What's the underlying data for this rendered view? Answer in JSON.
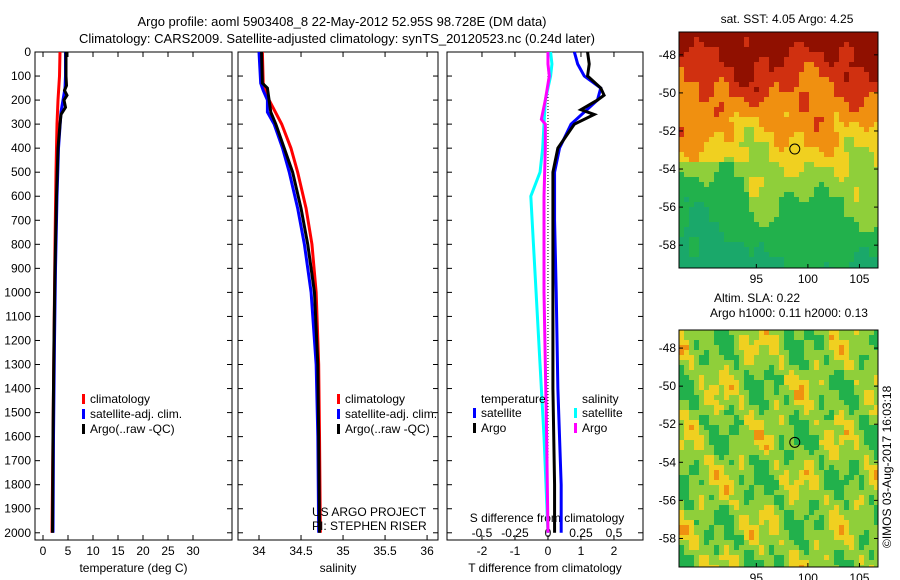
{
  "title_line1": "Argo profile: aoml 5903408_8 22-May-2012 52.95S 98.728E (DM data)",
  "title_line2": "Climatology: CARS2009. Satellite-adjusted climatology: synTS_20120523.nc (0.24d later)",
  "credit": "US ARGO PROJECT",
  "pi": "PI: STEPHEN RISER",
  "imos_stamp": "©IMOS 03-Aug-2017 16:03:18",
  "colors": {
    "climatology": "#ff0000",
    "satellite": "#0000ff",
    "argo": "#000000",
    "s_satellite": "#00ffff",
    "s_argo": "#ff00ff"
  },
  "chart_data": [
    {
      "type": "line",
      "name": "temperature",
      "xlabel": "temperature (deg C)",
      "ylabel": "",
      "xlim": [
        -1.6,
        37.8
      ],
      "ylim": [
        2030,
        0
      ],
      "xticks": [
        0,
        5,
        10,
        15,
        20,
        25,
        30
      ],
      "yticks": [
        0,
        100,
        200,
        300,
        400,
        500,
        600,
        700,
        800,
        900,
        1000,
        1100,
        1200,
        1300,
        1400,
        1500,
        1600,
        1700,
        1800,
        1900,
        2000
      ],
      "legend": [
        "climatology",
        "satellite-adj. clim.",
        "Argo(..raw -QC)"
      ],
      "series": [
        {
          "name": "climatology",
          "color": "#ff0000",
          "depth": [
            0,
            100,
            200,
            300,
            500,
            800,
            1200,
            1600,
            2000
          ],
          "values": [
            3.4,
            3.3,
            3.0,
            2.8,
            2.6,
            2.4,
            2.2,
            2.0,
            1.8
          ]
        },
        {
          "name": "satellite-adj. clim.",
          "color": "#0000ff",
          "depth": [
            0,
            100,
            150,
            250,
            400,
            600,
            900,
            1200,
            1600,
            2000
          ],
          "values": [
            4.5,
            4.5,
            4.4,
            3.6,
            3.1,
            2.8,
            2.5,
            2.3,
            2.1,
            2.0
          ]
        },
        {
          "name": "Argo(..raw -QC)",
          "color": "#000000",
          "depth": [
            0,
            100,
            140,
            160,
            180,
            200,
            230,
            260,
            300,
            400,
            600,
            900,
            1200,
            1600,
            2000
          ],
          "values": [
            4.6,
            4.6,
            4.7,
            4.3,
            4.8,
            4.2,
            4.5,
            3.6,
            3.4,
            3.0,
            2.7,
            2.4,
            2.2,
            2.0,
            1.9
          ]
        }
      ]
    },
    {
      "type": "line",
      "name": "salinity",
      "xlabel": "salinity",
      "ylabel": "",
      "xlim": [
        33.75,
        36.13
      ],
      "ylim": [
        2030,
        0
      ],
      "xticks": [
        34,
        34.5,
        35,
        35.5,
        36
      ],
      "legend": [
        "climatology",
        "satellite-adj. clim.",
        "Argo(..raw -QC)"
      ],
      "series": [
        {
          "name": "climatology",
          "color": "#ff0000",
          "depth": [
            0,
            130,
            200,
            300,
            400,
            500,
            650,
            800,
            1000,
            1300,
            1600,
            2000
          ],
          "values": [
            34.04,
            34.05,
            34.12,
            34.27,
            34.38,
            34.46,
            34.56,
            34.63,
            34.68,
            34.71,
            34.72,
            34.73
          ]
        },
        {
          "name": "satellite-adj. clim.",
          "color": "#0000ff",
          "depth": [
            0,
            130,
            160,
            200,
            250,
            300,
            400,
            500,
            650,
            800,
            1000,
            1300,
            1600,
            2000
          ],
          "values": [
            34.0,
            34.02,
            34.05,
            34.1,
            34.1,
            34.18,
            34.28,
            34.36,
            34.46,
            34.54,
            34.62,
            34.68,
            34.7,
            34.71
          ]
        },
        {
          "name": "Argo(..raw -QC)",
          "color": "#000000",
          "depth": [
            0,
            130,
            150,
            200,
            250,
            300,
            400,
            500,
            650,
            800,
            1000,
            1300,
            1600,
            2000
          ],
          "values": [
            34.03,
            34.04,
            34.1,
            34.12,
            34.14,
            34.2,
            34.3,
            34.4,
            34.5,
            34.58,
            34.66,
            34.7,
            34.71,
            34.72
          ]
        }
      ]
    },
    {
      "type": "line",
      "name": "difference",
      "xlabel": "T difference from climatology",
      "top_xlabel": "S difference from climatology",
      "xlim": [
        -3.06,
        2.88
      ],
      "s_xlim": [
        -0.765,
        0.72
      ],
      "ylim": [
        2030,
        0
      ],
      "xticks": [
        -2,
        -1,
        0,
        1,
        2
      ],
      "s_xticks": [
        -0.5,
        -0.25,
        0,
        0.25,
        0.5
      ],
      "legend": {
        "temperature": "temperature",
        "salinity": "salinity",
        "t_items": [
          "satellite",
          "Argo"
        ],
        "s_items": [
          "satellite",
          "Argo"
        ]
      },
      "series": [
        {
          "name": "T satellite",
          "color": "#0000ff",
          "axis": "T",
          "depth": [
            0,
            50,
            100,
            150,
            200,
            300,
            400,
            500,
            700,
            1000,
            1400,
            1800,
            2000
          ],
          "values": [
            0.8,
            0.9,
            1.1,
            1.6,
            1.5,
            0.7,
            0.35,
            0.2,
            0.2,
            0.25,
            0.3,
            0.4,
            0.4
          ]
        },
        {
          "name": "T Argo",
          "color": "#000000",
          "axis": "T",
          "depth": [
            0,
            50,
            100,
            150,
            180,
            200,
            240,
            260,
            300,
            400,
            500,
            700,
            1000,
            1400,
            1800,
            2000
          ],
          "values": [
            1.2,
            1.25,
            1.2,
            1.6,
            1.7,
            1.5,
            1.0,
            1.4,
            0.8,
            0.3,
            0.15,
            0.15,
            0.15,
            0.15,
            0.2,
            0.2
          ]
        },
        {
          "name": "S satellite",
          "color": "#00ffff",
          "axis": "S",
          "depth": [
            0,
            50,
            100,
            200,
            300,
            400,
            500,
            600,
            800,
            1000,
            1300,
            1600,
            2000
          ],
          "values": [
            0.02,
            0.03,
            0.02,
            -0.02,
            -0.03,
            -0.04,
            -0.06,
            -0.13,
            -0.11,
            -0.09,
            -0.06,
            -0.03,
            0.0
          ]
        },
        {
          "name": "S Argo",
          "color": "#ff00ff",
          "axis": "S",
          "depth": [
            0,
            50,
            100,
            200,
            280,
            300,
            400,
            600,
            800,
            1000,
            1300,
            1600,
            2000
          ],
          "values": [
            0.0,
            0.0,
            0.01,
            -0.02,
            -0.05,
            -0.02,
            -0.02,
            -0.03,
            -0.03,
            -0.03,
            -0.02,
            -0.01,
            0.0
          ]
        }
      ]
    },
    {
      "type": "heatmap",
      "name": "sst_map",
      "title": "sat. SST: 4.05 Argo: 4.25",
      "xlim": [
        87.5,
        106.8
      ],
      "ylim": [
        -59.2,
        -46.8
      ],
      "xticks": [
        95,
        100,
        105
      ],
      "yticks": [
        -48,
        -50,
        -52,
        -54,
        -56,
        -58
      ],
      "marker": [
        98.728,
        -52.95
      ]
    },
    {
      "type": "heatmap",
      "name": "sla_map",
      "title": "Altim. SLA: 0.22",
      "subtitle": "Argo h1000: 0.11 h2000: 0.13",
      "xlim": [
        87.5,
        106.8
      ],
      "ylim": [
        -59.5,
        -47.05
      ],
      "xticks": [
        95,
        100,
        105
      ],
      "yticks": [
        -48,
        -50,
        -52,
        -54,
        -56,
        -58
      ],
      "marker": [
        98.728,
        -52.95
      ]
    }
  ]
}
